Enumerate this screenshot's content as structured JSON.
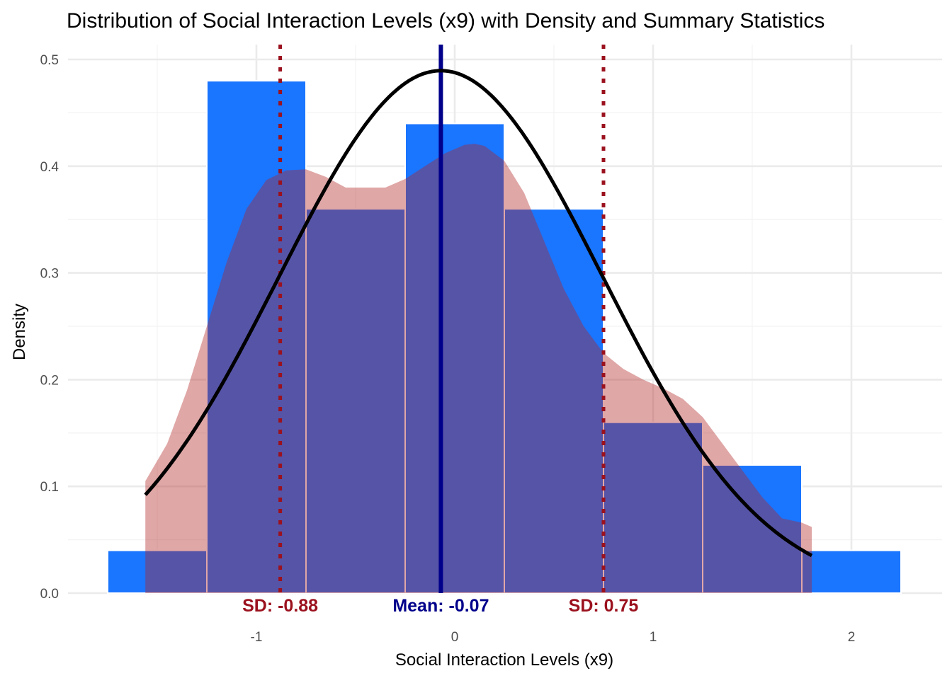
{
  "chart_data": {
    "type": "histogram",
    "title": "Distribution of Social Interaction Levels (x9) with Density and Summary Statistics",
    "xlabel": "Social Interaction Levels (x9)",
    "ylabel": "Density",
    "xlim": [
      -1.95,
      2.45
    ],
    "ylim": [
      0,
      0.5
    ],
    "x_ticks": [
      -1,
      0,
      1,
      2
    ],
    "x_tick_labels": [
      "-1",
      "0",
      "1",
      "2"
    ],
    "y_ticks": [
      0.0,
      0.1,
      0.2,
      0.3,
      0.4,
      0.5
    ],
    "y_tick_labels": [
      "0.0",
      "0.1",
      "0.2",
      "0.3",
      "0.4",
      "0.5"
    ],
    "grid": true,
    "colors": {
      "histogram_fill": "#1a75ff",
      "density_fill": "#b22222",
      "normal_curve": "#000000",
      "mean_line": "#00008b",
      "sd_lines": "#9b111e",
      "grid": "#ebebeb"
    },
    "histogram_bins": [
      {
        "x0": -1.75,
        "x1": -1.25,
        "density": 0.04
      },
      {
        "x0": -1.25,
        "x1": -0.75,
        "density": 0.48
      },
      {
        "x0": -0.75,
        "x1": -0.25,
        "density": 0.36
      },
      {
        "x0": -0.25,
        "x1": 0.25,
        "density": 0.44
      },
      {
        "x0": 0.25,
        "x1": 0.75,
        "density": 0.36
      },
      {
        "x0": 0.75,
        "x1": 1.25,
        "density": 0.16
      },
      {
        "x0": 1.25,
        "x1": 1.75,
        "density": 0.12
      },
      {
        "x0": 1.75,
        "x1": 2.25,
        "density": 0.04
      }
    ],
    "kernel_density": {
      "x": [
        -1.56,
        -1.45,
        -1.35,
        -1.25,
        -1.15,
        -1.05,
        -0.95,
        -0.85,
        -0.75,
        -0.65,
        -0.55,
        -0.45,
        -0.35,
        -0.25,
        -0.15,
        -0.05,
        0.05,
        0.1,
        0.15,
        0.25,
        0.35,
        0.45,
        0.55,
        0.65,
        0.75,
        0.85,
        0.95,
        1.05,
        1.15,
        1.25,
        1.35,
        1.45,
        1.55,
        1.65,
        1.75,
        1.8
      ],
      "y": [
        0.105,
        0.14,
        0.19,
        0.25,
        0.31,
        0.36,
        0.387,
        0.396,
        0.397,
        0.39,
        0.38,
        0.38,
        0.38,
        0.388,
        0.4,
        0.412,
        0.42,
        0.421,
        0.419,
        0.405,
        0.375,
        0.33,
        0.285,
        0.25,
        0.225,
        0.21,
        0.2,
        0.192,
        0.182,
        0.165,
        0.14,
        0.115,
        0.09,
        0.07,
        0.066,
        0.062
      ]
    },
    "normal_curve": {
      "mean": -0.07,
      "sd": 0.815,
      "x_range": [
        -1.56,
        1.8
      ]
    },
    "mean_line": {
      "x": -0.07,
      "label": "Mean: -0.07"
    },
    "sd_lines": [
      {
        "x": -0.88,
        "label": "SD: -0.88"
      },
      {
        "x": 0.75,
        "label": "SD: 0.75"
      }
    ]
  }
}
